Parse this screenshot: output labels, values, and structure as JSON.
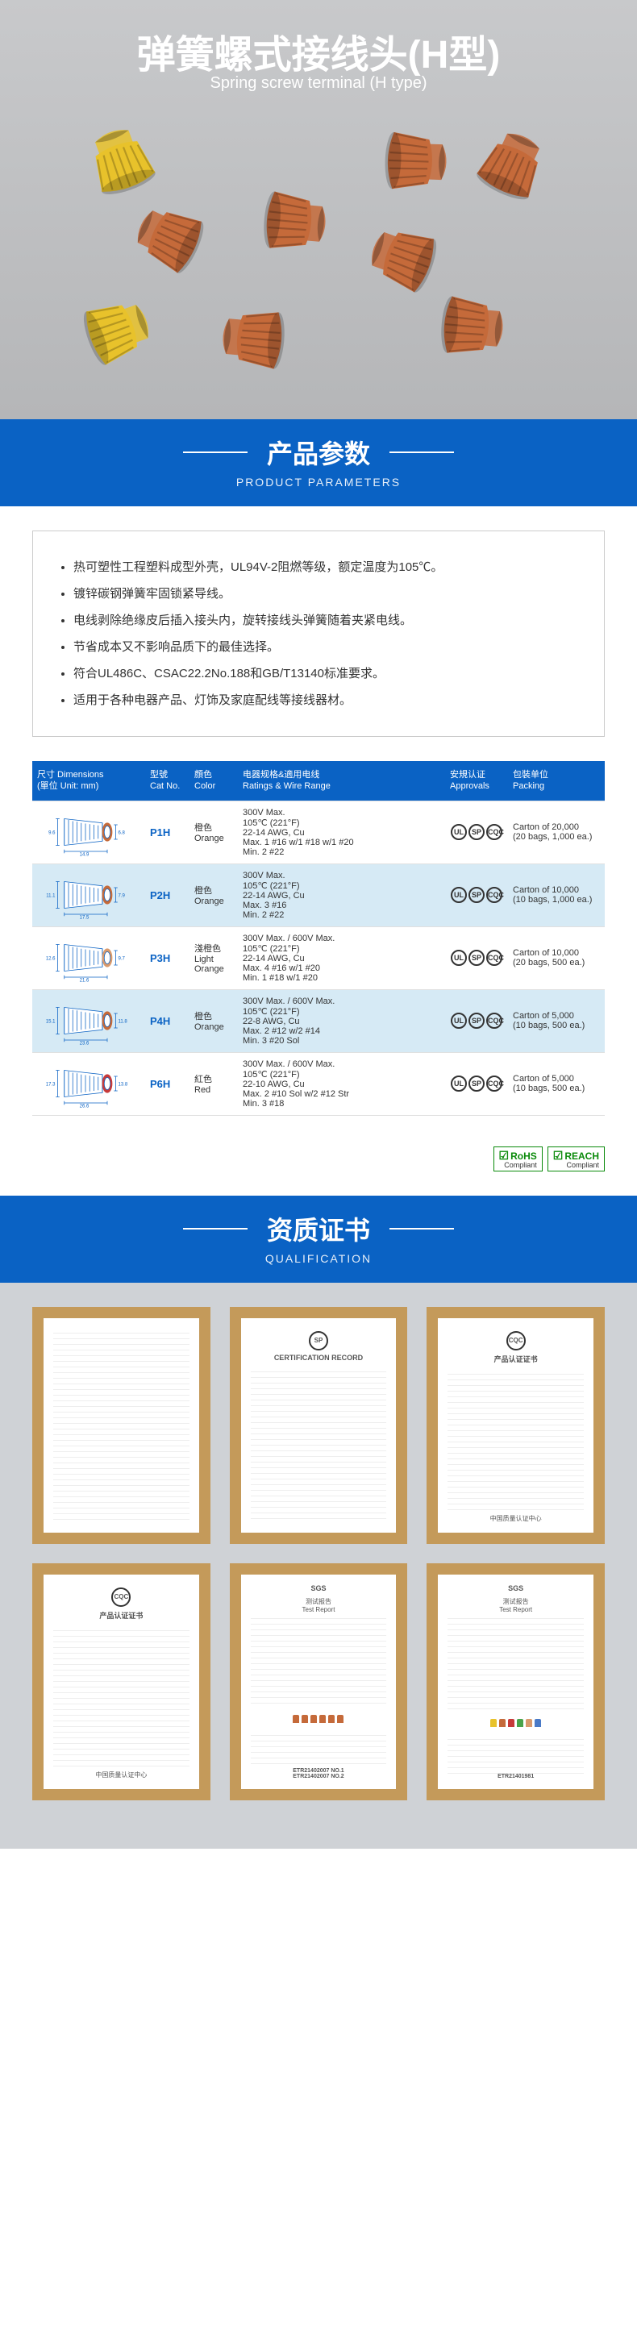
{
  "hero": {
    "title_cn": "弹簧螺式接线头(H型)",
    "title_en": "Spring screw terminal (H type)",
    "connector_colors": {
      "orange": "#c56a3a",
      "yellow": "#e8c22b"
    }
  },
  "sections": {
    "parameters": {
      "cn": "产品参数",
      "en": "PRODUCT PARAMETERS"
    },
    "qualification": {
      "cn": "资质证书",
      "en": "QUALIFICATION"
    }
  },
  "features": [
    "热可塑性工程塑料成型外壳，UL94V-2阻燃等级，额定温度为105℃。",
    "镀锌碳钢弹簧牢固锁紧导线。",
    "电线剥除绝缘皮后插入接头内，旋转接线头弹簧随着夹紧电线。",
    "节省成本又不影响品质下的最佳选择。",
    "符合UL486C、CSAC22.2No.188和GB/T13140标准要求。",
    "适用于各种电器产品、灯饰及家庭配线等接线器材。"
  ],
  "table": {
    "headers": {
      "dim": "尺寸 Dimensions\n(單位 Unit: mm)",
      "cat": "型號\nCat No.",
      "color": "顔色\nColor",
      "ratings": "电器规格&適用电线\nRatings & Wire Range",
      "approvals": "安規认证\nApprovals",
      "packing": "包裝单位\nPacking"
    },
    "rows": [
      {
        "dims": [
          "14.9",
          "9.6",
          "6.8"
        ],
        "cat": "P1H",
        "color": "橙色\nOrange",
        "ratings": "300V Max.\n105℃ (221°F)\n22-14 AWG, Cu\nMax. 1 #16 w/1 #18 w/1 #20\nMin. 2 #22",
        "packing": "Carton of 20,000\n(20 bags, 1,000 ea.)",
        "cone": "#c56a3a"
      },
      {
        "dims": [
          "17.5",
          "11.1",
          "7.9"
        ],
        "cat": "P2H",
        "color": "橙色\nOrange",
        "ratings": "300V Max.\n105℃ (221°F)\n22-14 AWG, Cu\nMax. 3 #16\nMin. 2 #22",
        "packing": "Carton of 10,000\n(10 bags, 1,000 ea.)",
        "cone": "#c56a3a"
      },
      {
        "dims": [
          "21.6",
          "12.6",
          "9.7"
        ],
        "cat": "P3H",
        "color": "淺橙色\nLight\nOrange",
        "ratings": "300V Max. / 600V Max.\n105℃ (221°F)\n22-14 AWG, Cu\nMax. 4 #16 w/1 #20\nMin. 1 #18 w/1 #20",
        "packing": "Carton of 10,000\n(20 bags, 500 ea.)",
        "cone": "#d99a6c"
      },
      {
        "dims": [
          "23.6",
          "15.1",
          "11.8"
        ],
        "cat": "P4H",
        "color": "橙色\nOrange",
        "ratings": "300V Max. / 600V Max.\n105℃ (221°F)\n22-8 AWG, Cu\nMax. 2 #12 w/2 #14\nMin. 3 #20 Sol",
        "packing": "Carton of 5,000\n(10 bags, 500 ea.)",
        "cone": "#c56a3a"
      },
      {
        "dims": [
          "26.6",
          "17.3",
          "13.8"
        ],
        "cat": "P6H",
        "color": "紅色\nRed",
        "ratings": "300V Max. / 600V Max.\n105℃ (221°F)\n22-10 AWG, Cu\nMax. 2 #10 Sol w/2 #12 Str\nMin. 3 #18",
        "packing": "Carton of 5,000\n(10 bags, 500 ea.)",
        "cone": "#c73a3a"
      }
    ],
    "approval_marks": [
      "UL",
      "SP",
      "CQC"
    ]
  },
  "compliance": [
    "RoHS",
    "REACH"
  ],
  "certs": [
    {
      "head": "",
      "logo": "",
      "type": "body"
    },
    {
      "head": "CERTIFICATION RECORD",
      "logo": "SP",
      "type": "body"
    },
    {
      "head": "产品认证证书",
      "logo": "CQC",
      "type": "body",
      "foot": "中国质量认证中心"
    },
    {
      "head": "产品认证证书",
      "logo": "CQC",
      "type": "body",
      "foot": "中国质量认证中心"
    },
    {
      "head": "SGS",
      "sub": "测试报告\nTest Report",
      "ref": "ETR21402007 NO.1\nETR21402007 NO.2",
      "type": "sgs",
      "samples": [
        "#c56a3a",
        "#c56a3a",
        "#c56a3a",
        "#c56a3a",
        "#c56a3a",
        "#c56a3a"
      ]
    },
    {
      "head": "SGS",
      "sub": "测试报告\nTest Report",
      "ref": "ETR21401981",
      "type": "sgs",
      "samples": [
        "#e8c22b",
        "#c56a3a",
        "#c73a3a",
        "#4aa34a",
        "#d99a6c",
        "#4a7ac7"
      ]
    }
  ]
}
